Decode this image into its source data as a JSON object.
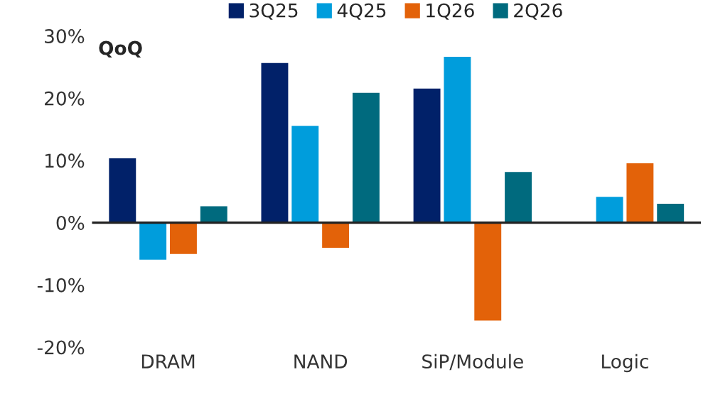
{
  "chart_data": {
    "type": "bar",
    "ylabel": "QoQ",
    "categories": [
      "DRAM",
      "NAND",
      "SiP/Module",
      "Logic"
    ],
    "series": [
      {
        "name": "3Q25",
        "color": "#012169",
        "values": [
          10.5,
          25.8,
          21.7,
          0.3
        ]
      },
      {
        "name": "4Q25",
        "color": "#009ddc",
        "values": [
          -6.1,
          15.7,
          26.8,
          4.3
        ]
      },
      {
        "name": "1Q26",
        "color": "#e36209",
        "values": [
          -5.2,
          -4.2,
          -15.9,
          9.7
        ]
      },
      {
        "name": "2Q26",
        "color": "#006a7e",
        "values": [
          2.8,
          21.0,
          8.3,
          3.2
        ]
      }
    ],
    "ylim": [
      -20,
      30
    ],
    "yticks": [
      {
        "value": 30,
        "label": "30%"
      },
      {
        "value": 20,
        "label": "20%"
      },
      {
        "value": 10,
        "label": "10%"
      },
      {
        "value": 0,
        "label": "0%"
      },
      {
        "value": -10,
        "label": "-10%"
      },
      {
        "value": -20,
        "label": "-20%"
      }
    ],
    "ref_lines": [
      {
        "axis": "y",
        "value": 0,
        "color": "#222222"
      }
    ],
    "grid": false,
    "legend": "top"
  }
}
